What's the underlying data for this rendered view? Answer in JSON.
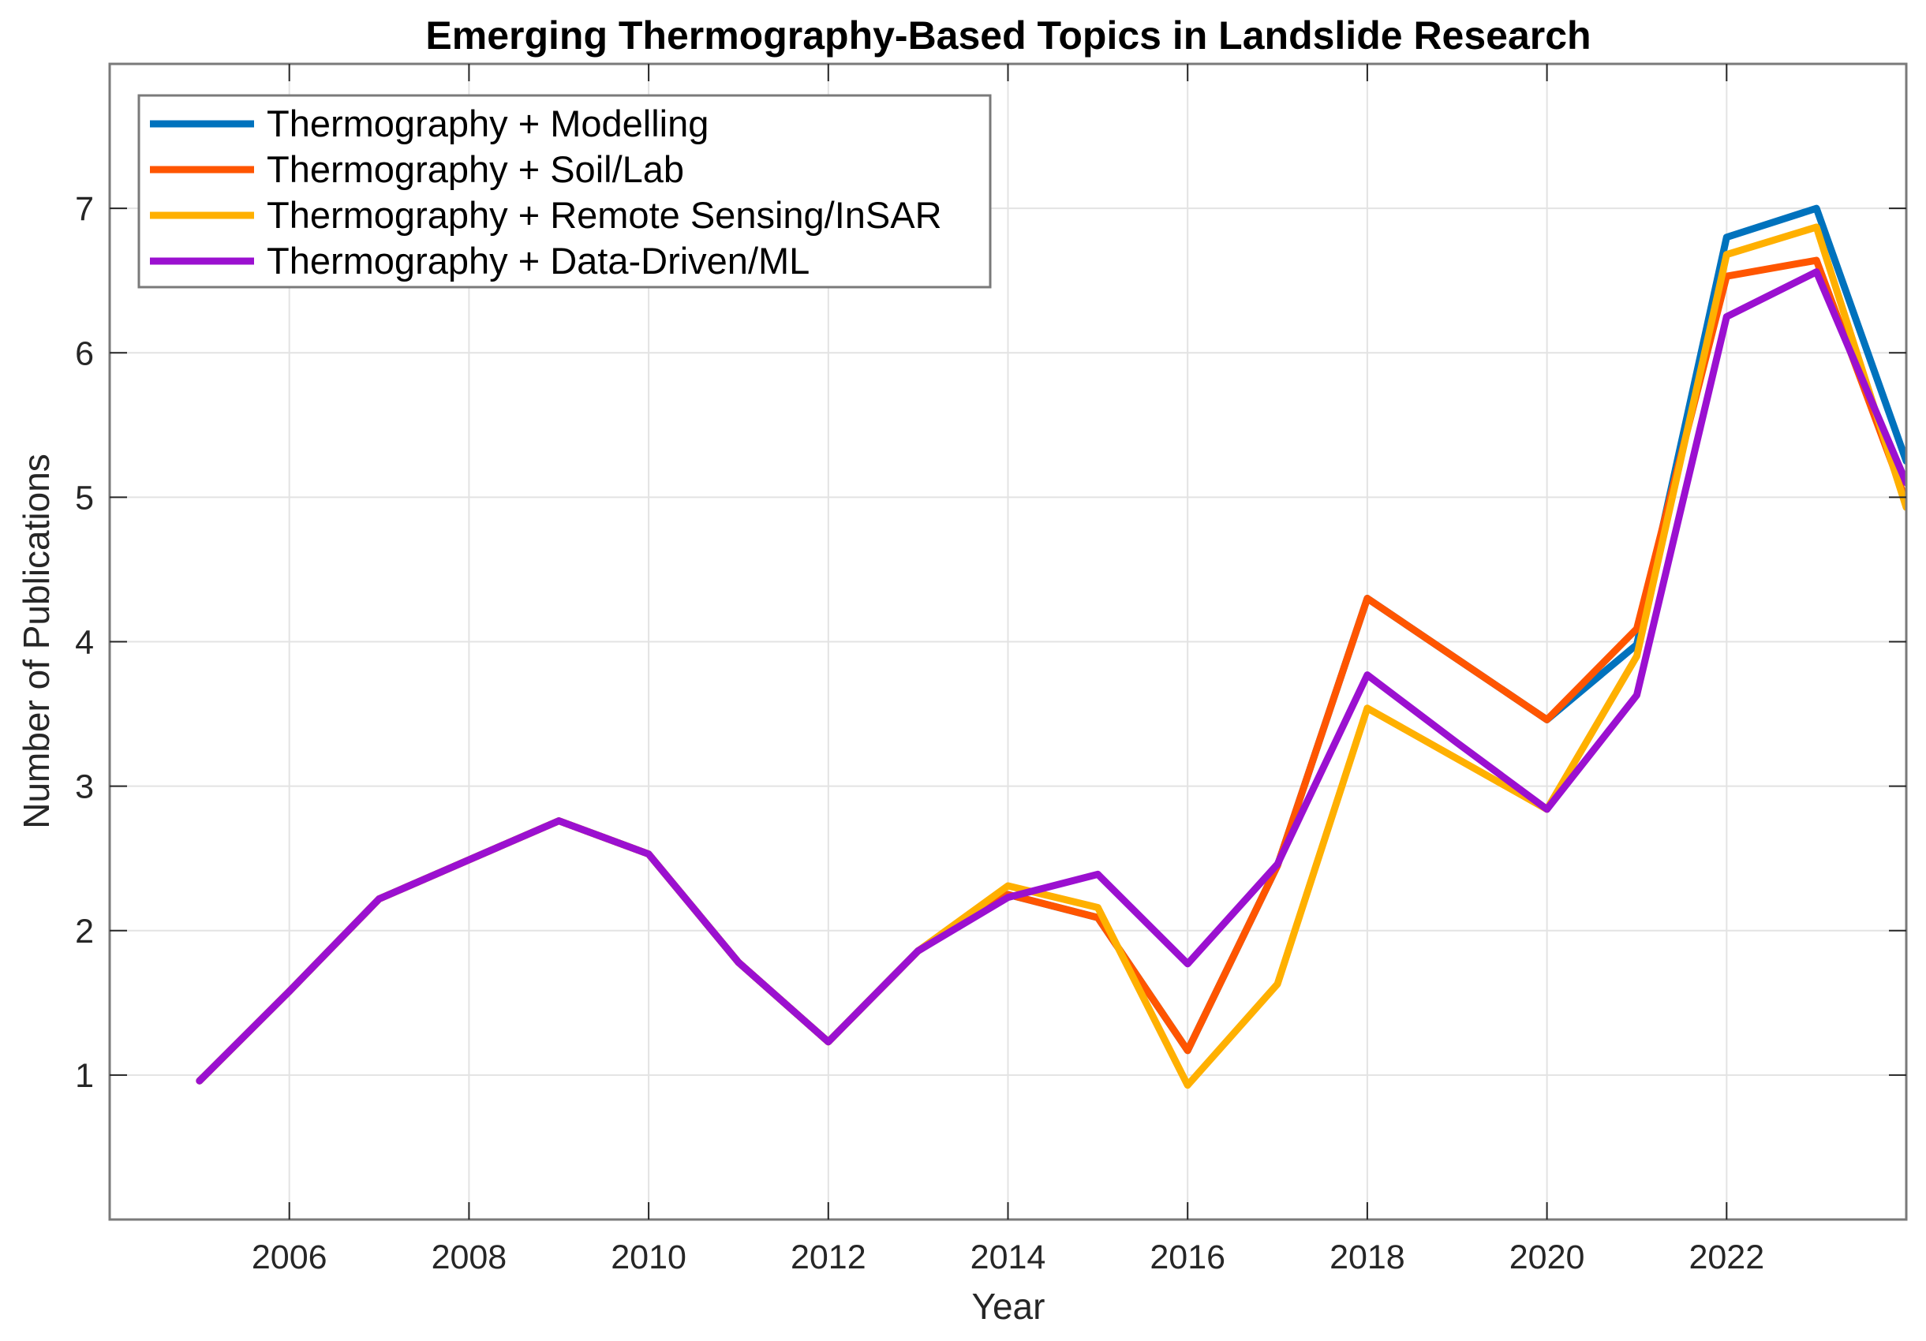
{
  "chart_data": {
    "type": "line",
    "title": "Emerging Thermography-Based Topics in Landslide Research",
    "xlabel": "Year",
    "ylabel": "Number of Publications",
    "xlim": [
      2004,
      2024
    ],
    "ylim": [
      0,
      8
    ],
    "xticks": [
      2006,
      2008,
      2010,
      2012,
      2014,
      2016,
      2018,
      2020,
      2022
    ],
    "yticks": [
      1,
      2,
      3,
      4,
      5,
      6,
      7
    ],
    "grid": true,
    "legend_position": "top-left",
    "x": [
      2005,
      2006,
      2007,
      2008,
      2009,
      2010,
      2011,
      2012,
      2013,
      2014,
      2015,
      2016,
      2017,
      2018,
      2019,
      2020,
      2021,
      2022,
      2023,
      2024
    ],
    "series": [
      {
        "name": "Thermography + Modelling",
        "color": "#0072BD",
        "values": [
          0.96,
          1.58,
          2.22,
          2.49,
          2.76,
          2.53,
          1.78,
          1.23,
          1.86,
          2.25,
          2.09,
          1.17,
          2.45,
          4.3,
          3.88,
          3.46,
          3.98,
          6.8,
          7.0,
          5.25
        ]
      },
      {
        "name": "Thermography + Soil/Lab",
        "color": "#FF5500",
        "values": [
          0.96,
          1.58,
          2.22,
          2.49,
          2.76,
          2.53,
          1.78,
          1.23,
          1.86,
          2.25,
          2.09,
          1.17,
          2.45,
          4.3,
          3.88,
          3.46,
          4.09,
          6.53,
          6.64,
          4.97
        ]
      },
      {
        "name": "Thermography + Remote Sensing/InSAR",
        "color": "#FFB000",
        "values": [
          0.96,
          1.58,
          2.22,
          2.49,
          2.76,
          2.53,
          1.78,
          1.23,
          1.86,
          2.31,
          2.16,
          0.93,
          1.63,
          3.54,
          3.19,
          2.84,
          3.9,
          6.68,
          6.87,
          4.93
        ]
      },
      {
        "name": "Thermography + Data-Driven/ML",
        "color": "#9B10D0",
        "values": [
          0.96,
          1.58,
          2.22,
          2.49,
          2.76,
          2.53,
          1.78,
          1.23,
          1.86,
          2.23,
          2.39,
          1.77,
          2.46,
          3.77,
          3.3,
          2.84,
          3.63,
          6.25,
          6.56,
          5.1
        ]
      }
    ]
  }
}
